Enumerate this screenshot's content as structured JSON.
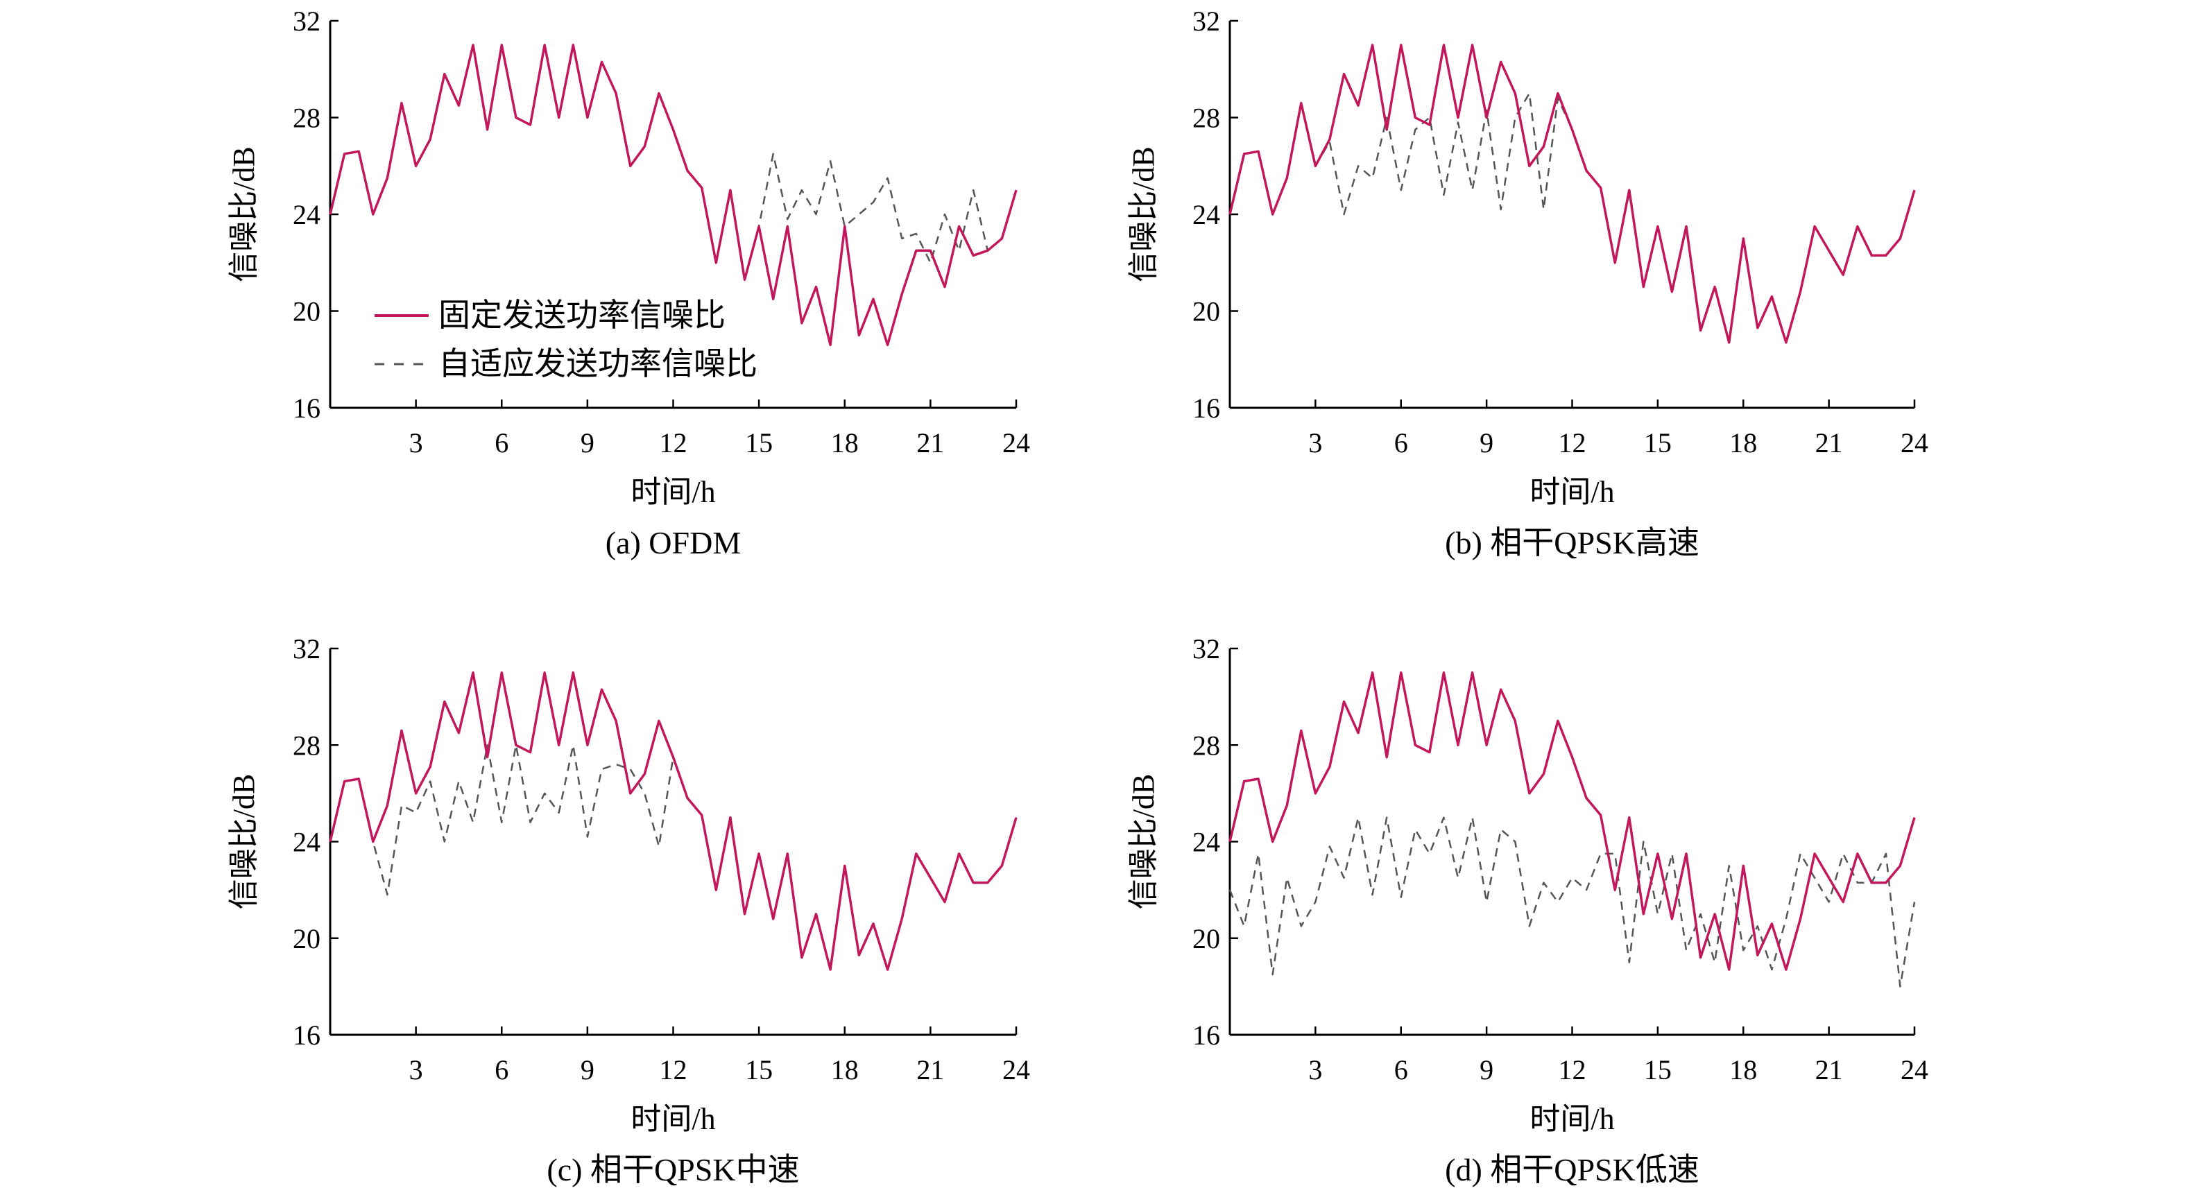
{
  "legend": {
    "fixed": "固定发送功率信噪比",
    "adaptive": "自适应发送功率信噪比"
  },
  "colors": {
    "fixed": "#c2185b",
    "adaptive": "#555555",
    "highlight": "#3f51b5"
  },
  "chart_data": [
    {
      "type": "line",
      "caption": "(a) OFDM",
      "xlabel": "时间/h",
      "ylabel": "信噪比/dB",
      "xlim": [
        0,
        24
      ],
      "ylim": [
        16,
        32
      ],
      "xticks": [
        3,
        6,
        9,
        12,
        15,
        18,
        21,
        24
      ],
      "yticks": [
        16,
        20,
        24,
        28,
        32
      ],
      "x": [
        0,
        0.5,
        1,
        1.5,
        2,
        2.5,
        3,
        3.5,
        4,
        4.5,
        5,
        5.5,
        6,
        6.5,
        7,
        7.5,
        8,
        8.5,
        9,
        9.5,
        10,
        10.5,
        11,
        11.5,
        12,
        12.5,
        13,
        13.5,
        14,
        14.5,
        15,
        15.5,
        16,
        16.5,
        17,
        17.5,
        18,
        18.5,
        19,
        19.5,
        20,
        20.5,
        21,
        21.5,
        22,
        22.5,
        23,
        23.5,
        24
      ],
      "series": [
        {
          "name": "固定发送功率信噪比",
          "style": "solid",
          "values": [
            24,
            26.5,
            26.6,
            24,
            25.5,
            28.6,
            26,
            27.1,
            29.8,
            28.5,
            31,
            27.5,
            31,
            28,
            27.7,
            31,
            28,
            31,
            28,
            30.3,
            29,
            26,
            26.8,
            29,
            27.5,
            25.8,
            25.1,
            22,
            25,
            21.3,
            23.5,
            20.5,
            23.5,
            19.5,
            21,
            18.6,
            23.5,
            19,
            20.5,
            18.6,
            20.7,
            22.5,
            22.5,
            21,
            23.5,
            22.3,
            22.5,
            23,
            25
          ]
        },
        {
          "name": "自适应发送功率信噪比",
          "style": "dashed",
          "values": [
            24,
            26.5,
            26.6,
            24,
            25.5,
            28.6,
            26,
            27.1,
            29.8,
            28.5,
            31,
            27.5,
            31,
            28,
            27.7,
            31,
            28,
            31,
            28,
            30.3,
            29,
            26,
            26.8,
            29,
            27.5,
            25.8,
            25.1,
            22,
            25,
            21.3,
            23.5,
            26.5,
            23.8,
            25,
            24,
            26.2,
            23.5,
            24,
            24.5,
            25.5,
            23,
            23.2,
            22,
            24,
            22.5,
            25,
            22.5,
            23,
            25
          ]
        }
      ]
    },
    {
      "type": "line",
      "caption": "(b) 相干QPSK高速",
      "xlabel": "时间/h",
      "ylabel": "信噪比/dB",
      "xlim": [
        0,
        24
      ],
      "ylim": [
        16,
        32
      ],
      "xticks": [
        3,
        6,
        9,
        12,
        15,
        18,
        21,
        24
      ],
      "yticks": [
        16,
        20,
        24,
        28,
        32
      ],
      "x": [
        0,
        0.5,
        1,
        1.5,
        2,
        2.5,
        3,
        3.5,
        4,
        4.5,
        5,
        5.5,
        6,
        6.5,
        7,
        7.5,
        8,
        8.5,
        9,
        9.5,
        10,
        10.5,
        11,
        11.5,
        12,
        12.5,
        13,
        13.5,
        14,
        14.5,
        15,
        15.5,
        16,
        16.5,
        17,
        17.5,
        18,
        18.5,
        19,
        19.5,
        20,
        20.5,
        21,
        21.5,
        22,
        22.5,
        23,
        23.5,
        24
      ],
      "series": [
        {
          "name": "固定发送功率信噪比",
          "style": "solid",
          "values": [
            24,
            26.5,
            26.6,
            24,
            25.5,
            28.6,
            26,
            27.1,
            29.8,
            28.5,
            31,
            27.5,
            31,
            28,
            27.7,
            31,
            28,
            31,
            28,
            30.3,
            29,
            26,
            26.8,
            29,
            27.5,
            25.8,
            25.1,
            22,
            25,
            21,
            23.5,
            20.8,
            23.5,
            19.2,
            21,
            18.7,
            23,
            19.3,
            20.6,
            18.7,
            20.8,
            23.5,
            22.5,
            21.5,
            23.5,
            22.3,
            22.3,
            23,
            25
          ]
        },
        {
          "name": "自适应发送功率信噪比",
          "style": "dashed",
          "values": [
            24,
            26.5,
            26.6,
            24,
            25.5,
            28.6,
            26,
            27,
            24,
            26,
            25.5,
            28,
            25,
            27.5,
            28,
            24.8,
            27.8,
            25,
            28.3,
            24.2,
            28,
            29,
            24.2,
            28.8,
            27.5,
            25.8,
            25.1,
            22,
            25,
            21,
            23.5,
            20.8,
            23.5,
            19.2,
            21,
            18.7,
            23,
            19.3,
            20.6,
            18.7,
            20.8,
            23.5,
            22.5,
            21.5,
            23.5,
            22.3,
            22.3,
            23,
            25
          ]
        }
      ]
    },
    {
      "type": "line",
      "caption": "(c) 相干QPSK中速",
      "xlabel": "时间/h",
      "ylabel": "信噪比/dB",
      "xlim": [
        0,
        24
      ],
      "ylim": [
        16,
        32
      ],
      "xticks": [
        3,
        6,
        9,
        12,
        15,
        18,
        21,
        24
      ],
      "yticks": [
        16,
        20,
        24,
        28,
        32
      ],
      "x": [
        0,
        0.5,
        1,
        1.5,
        2,
        2.5,
        3,
        3.5,
        4,
        4.5,
        5,
        5.5,
        6,
        6.5,
        7,
        7.5,
        8,
        8.5,
        9,
        9.5,
        10,
        10.5,
        11,
        11.5,
        12,
        12.5,
        13,
        13.5,
        14,
        14.5,
        15,
        15.5,
        16,
        16.5,
        17,
        17.5,
        18,
        18.5,
        19,
        19.5,
        20,
        20.5,
        21,
        21.5,
        22,
        22.5,
        23,
        23.5,
        24
      ],
      "series": [
        {
          "name": "固定发送功率信噪比",
          "style": "solid",
          "values": [
            24,
            26.5,
            26.6,
            24,
            25.5,
            28.6,
            26,
            27.1,
            29.8,
            28.5,
            31,
            27.5,
            31,
            28,
            27.7,
            31,
            28,
            31,
            28,
            30.3,
            29,
            26,
            26.8,
            29,
            27.5,
            25.8,
            25.1,
            22,
            25,
            21,
            23.5,
            20.8,
            23.5,
            19.2,
            21,
            18.7,
            23,
            19.3,
            20.6,
            18.7,
            20.8,
            23.5,
            22.5,
            21.5,
            23.5,
            22.3,
            22.3,
            23,
            25
          ]
        },
        {
          "name": "自适应发送功率信噪比",
          "style": "dashed",
          "values": [
            24,
            26.5,
            26.6,
            24,
            21.8,
            25.5,
            25.2,
            26.5,
            24,
            26.5,
            24.8,
            28,
            24.8,
            28,
            24.8,
            26,
            25.2,
            28,
            24.2,
            27,
            27.2,
            27,
            26,
            23.8,
            27.5,
            25.8,
            25.1,
            22,
            25,
            21,
            23.5,
            20.8,
            23.5,
            19.2,
            21,
            18.7,
            23,
            19.3,
            20.6,
            18.7,
            20.8,
            23.5,
            22.5,
            21.5,
            23.5,
            22.3,
            22.3,
            23,
            25
          ]
        }
      ]
    },
    {
      "type": "line",
      "caption": "(d) 相干QPSK低速",
      "xlabel": "时间/h",
      "ylabel": "信噪比/dB",
      "xlim": [
        0,
        24
      ],
      "ylim": [
        16,
        32
      ],
      "xticks": [
        3,
        6,
        9,
        12,
        15,
        18,
        21,
        24
      ],
      "yticks": [
        16,
        20,
        24,
        28,
        32
      ],
      "x": [
        0,
        0.5,
        1,
        1.5,
        2,
        2.5,
        3,
        3.5,
        4,
        4.5,
        5,
        5.5,
        6,
        6.5,
        7,
        7.5,
        8,
        8.5,
        9,
        9.5,
        10,
        10.5,
        11,
        11.5,
        12,
        12.5,
        13,
        13.5,
        14,
        14.5,
        15,
        15.5,
        16,
        16.5,
        17,
        17.5,
        18,
        18.5,
        19,
        19.5,
        20,
        20.5,
        21,
        21.5,
        22,
        22.5,
        23,
        23.5,
        24
      ],
      "series": [
        {
          "name": "固定发送功率信噪比",
          "style": "solid",
          "values": [
            24,
            26.5,
            26.6,
            24,
            25.5,
            28.6,
            26,
            27.1,
            29.8,
            28.5,
            31,
            27.5,
            31,
            28,
            27.7,
            31,
            28,
            31,
            28,
            30.3,
            29,
            26,
            26.8,
            29,
            27.5,
            25.8,
            25.1,
            22,
            25,
            21,
            23.5,
            20.8,
            23.5,
            19.2,
            21,
            18.7,
            23,
            19.3,
            20.6,
            18.7,
            20.8,
            23.5,
            22.5,
            21.5,
            23.5,
            22.3,
            22.3,
            23,
            25
          ]
        },
        {
          "name": "自适应发送功率信噪比",
          "style": "dashed",
          "values": [
            22,
            20.5,
            23.5,
            18.5,
            22.5,
            20.5,
            21.5,
            23.8,
            22.5,
            25,
            21.8,
            25,
            21.7,
            24.5,
            23.5,
            25,
            22.5,
            25,
            21.5,
            24.5,
            24,
            20.5,
            22.3,
            21.5,
            22.5,
            22,
            23.5,
            23.5,
            19,
            24,
            21,
            23.5,
            19.5,
            21,
            19,
            23,
            19.5,
            20.5,
            18.7,
            20.8,
            23.5,
            22.5,
            21.5,
            23.5,
            22.3,
            22.3,
            23.5,
            18,
            21.5
          ]
        }
      ]
    }
  ]
}
